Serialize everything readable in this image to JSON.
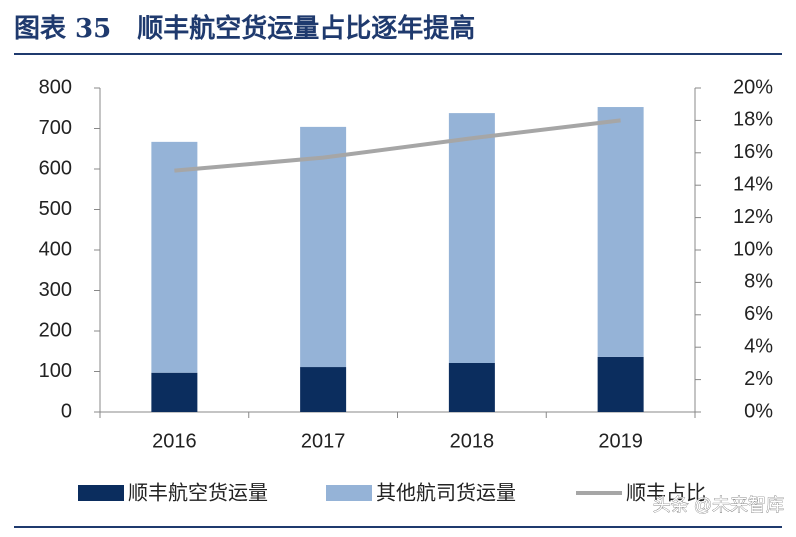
{
  "title": "图表 35　顺丰航空货运量占比逐年提高",
  "watermark": "头条 @未来智库",
  "chart_data": {
    "type": "bar",
    "categories": [
      "2016",
      "2017",
      "2018",
      "2019"
    ],
    "series": [
      {
        "name": "顺丰航空货运量",
        "color": "#0b2d5e",
        "values": [
          97,
          111,
          121,
          136
        ]
      },
      {
        "name": "其他航司货运量",
        "color": "#95b3d7",
        "values": [
          570,
          593,
          617,
          617
        ]
      },
      {
        "name": "顺丰占比",
        "color": "#a6a6a6",
        "type": "line",
        "axis": "y2",
        "values": [
          14.9,
          15.7,
          16.9,
          18.0
        ]
      }
    ],
    "ylim": [
      0,
      800
    ],
    "yticks": [
      0,
      100,
      200,
      300,
      400,
      500,
      600,
      700,
      800
    ],
    "y2lim": [
      0,
      20
    ],
    "y2ticks": [
      {
        "value": 0,
        "label": "0%"
      },
      {
        "value": 2,
        "label": "2%"
      },
      {
        "value": 4,
        "label": "4%"
      },
      {
        "value": 6,
        "label": "6%"
      },
      {
        "value": 8,
        "label": "8%"
      },
      {
        "value": 10,
        "label": "10%"
      },
      {
        "value": 12,
        "label": "12%"
      },
      {
        "value": 14,
        "label": "14%"
      },
      {
        "value": 16,
        "label": "16%"
      },
      {
        "value": 18,
        "label": "18%"
      },
      {
        "value": 20,
        "label": "20%"
      }
    ],
    "stacked": true,
    "legend": "bottom"
  }
}
